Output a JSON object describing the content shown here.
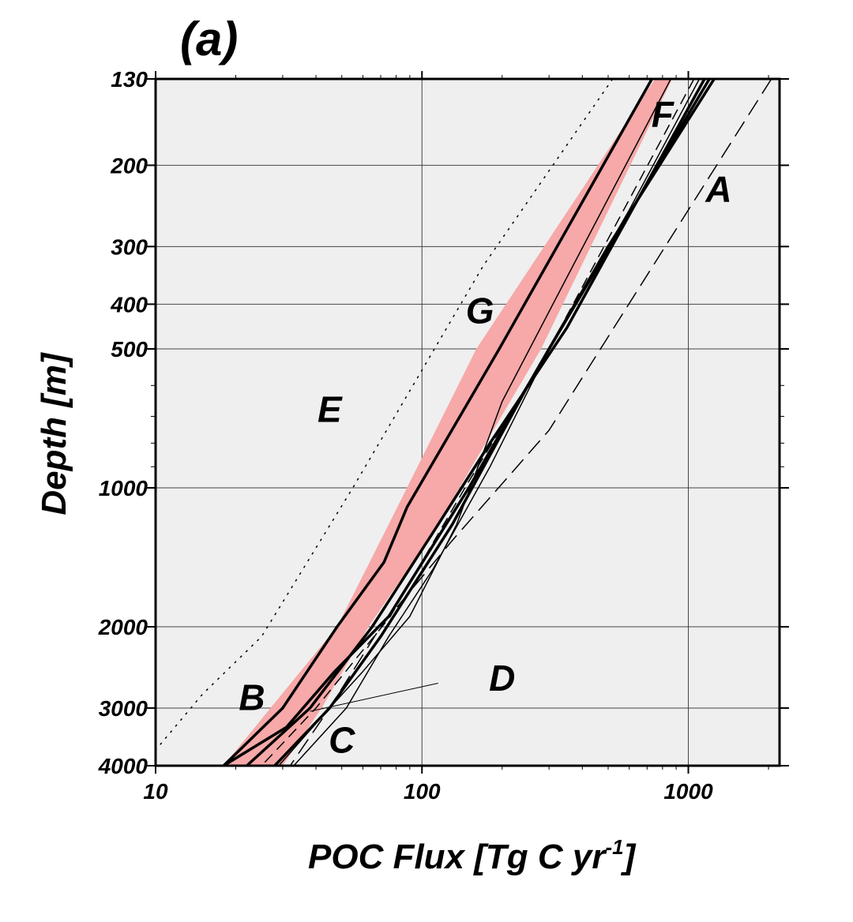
{
  "chart_data": {
    "type": "line",
    "panel_label": "(a)",
    "xlabel": "POC Flux [Tg C yr",
    "xlabel_sup": "-1",
    "xlabel_end": "]",
    "ylabel": "Depth [m]",
    "x_scale": "log",
    "y_scale": "log",
    "y_inverted": true,
    "xlim": [
      10,
      2200
    ],
    "ylim": [
      130,
      4000
    ],
    "grid": true,
    "x_ticks": [
      10,
      100,
      1000
    ],
    "x_tick_labels": [
      "10",
      "100",
      "1000"
    ],
    "y_ticks": [
      130,
      200,
      300,
      400,
      500,
      1000,
      2000,
      3000,
      4000
    ],
    "y_tick_labels": [
      "130",
      "200",
      "300",
      "400",
      "500",
      "1000",
      "2000",
      "3000",
      "4000"
    ],
    "band": {
      "color": "#f7a8a8",
      "upper": [
        [
          750,
          130
        ],
        [
          160,
          500
        ],
        [
          75,
          1200
        ],
        [
          48,
          2000
        ],
        [
          27,
          3000
        ],
        [
          18,
          4000
        ]
      ],
      "lower": [
        [
          870,
          130
        ],
        [
          280,
          500
        ],
        [
          110,
          1250
        ],
        [
          63,
          2000
        ],
        [
          42,
          3000
        ],
        [
          30,
          4000
        ]
      ]
    },
    "series": [
      {
        "name": "A",
        "style": "long-dash",
        "width": 1.5,
        "points": [
          [
            2050,
            130
          ],
          [
            1000,
            250
          ],
          [
            300,
            750
          ],
          [
            130,
            1300
          ],
          [
            70,
            2000
          ],
          [
            45,
            3000
          ],
          [
            32,
            4000
          ]
        ]
      },
      {
        "name": "B",
        "style": "solid",
        "width": 3.5,
        "points": [
          [
            1200,
            130
          ],
          [
            300,
            500
          ],
          [
            150,
            1000
          ],
          [
            75,
            1900
          ],
          [
            47,
            2500
          ],
          [
            31,
            3300
          ],
          [
            18,
            4000
          ]
        ]
      },
      {
        "name": "C",
        "style": "solid",
        "width": 1.5,
        "points": [
          [
            1100,
            130
          ],
          [
            600,
            250
          ],
          [
            300,
            500
          ],
          [
            180,
            900
          ],
          [
            110,
            1500
          ],
          [
            75,
            2100
          ],
          [
            52,
            3000
          ],
          [
            33,
            4000
          ]
        ]
      },
      {
        "name": "D",
        "style": "dashed",
        "width": 1.5,
        "points": [
          [
            1050,
            130
          ],
          [
            300,
            500
          ],
          [
            145,
            1000
          ],
          [
            76,
            1900
          ],
          [
            40,
            3000
          ],
          [
            25,
            4000
          ]
        ]
      },
      {
        "name": "E",
        "style": "dotted",
        "width": 1.5,
        "points": [
          [
            520,
            130
          ],
          [
            170,
            330
          ],
          [
            55,
            1000
          ],
          [
            25,
            2100
          ],
          [
            15,
            2800
          ],
          [
            10,
            3700
          ]
        ]
      },
      {
        "name": "F",
        "style": "solid",
        "width": 1.5,
        "points": [
          [
            860,
            130
          ],
          [
            350,
            350
          ],
          [
            200,
            650
          ],
          [
            135,
            1200
          ],
          [
            90,
            1900
          ],
          [
            60,
            2500
          ],
          [
            45,
            3000
          ],
          [
            29,
            4000
          ]
        ]
      },
      {
        "name": "G",
        "style": "solid",
        "width": 3.5,
        "points": [
          [
            730,
            130
          ],
          [
            195,
            500
          ],
          [
            88,
            1100
          ],
          [
            72,
            1450
          ],
          [
            48,
            2000
          ],
          [
            30,
            3000
          ],
          [
            18,
            4000
          ]
        ]
      },
      {
        "name": "",
        "style": "solid",
        "width": 3.5,
        "points": [
          [
            1150,
            130
          ],
          [
            350,
            450
          ],
          [
            180,
            800
          ],
          [
            110,
            1250
          ],
          [
            65,
            2000
          ],
          [
            38,
            3000
          ],
          [
            22,
            4000
          ]
        ]
      },
      {
        "name": "",
        "style": "solid",
        "width": 3.5,
        "points": [
          [
            1250,
            130
          ],
          [
            500,
            300
          ],
          [
            250,
            600
          ],
          [
            130,
            1200
          ],
          [
            70,
            2100
          ],
          [
            45,
            3000
          ],
          [
            28,
            4000
          ]
        ]
      }
    ],
    "annotations": [
      {
        "text": "A",
        "x": 1300,
        "y": 240
      },
      {
        "text": "B",
        "x": 23,
        "y": 3030
      },
      {
        "text": "C",
        "x": 50,
        "y": 3750
      },
      {
        "text": "D",
        "x": 200,
        "y": 2750
      },
      {
        "text": "E",
        "x": 45,
        "y": 720
      },
      {
        "text": "F",
        "x": 800,
        "y": 165
      },
      {
        "text": "G",
        "x": 165,
        "y": 440
      }
    ],
    "leader_line": {
      "from": [
        115,
        2650
      ],
      "to": [
        38,
        3050
      ]
    }
  }
}
